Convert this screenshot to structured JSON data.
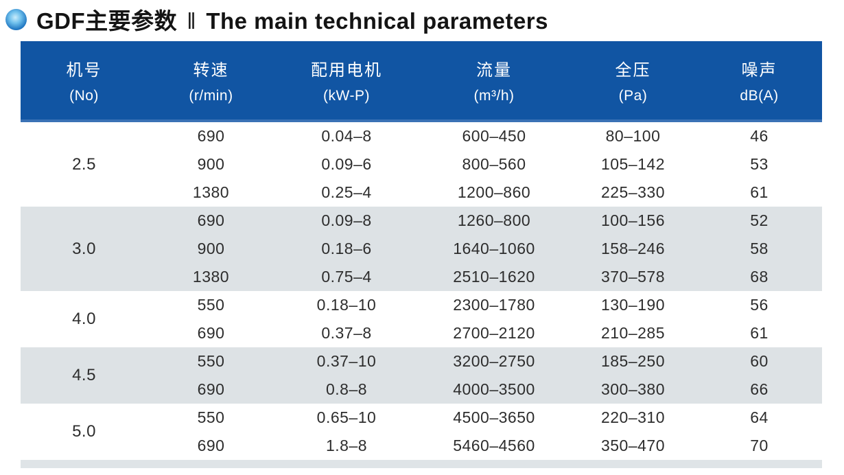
{
  "header": {
    "bullet_icon": "blue-sphere-icon",
    "title_zh": "GDF主要参数",
    "divider": "‖",
    "title_en": "The main technical parameters"
  },
  "colors": {
    "header_bg": "#1155a3",
    "header_edge": "#3a72b5",
    "header_text": "#ffffff",
    "shaded_row_bg": "#dde2e5",
    "row_bg": "#ffffff",
    "body_text": "#2d2d2d"
  },
  "table": {
    "columns": [
      {
        "name_zh": "机号",
        "unit": "(No)"
      },
      {
        "name_zh": "转速",
        "unit": "(r/min)"
      },
      {
        "name_zh": "配用电机",
        "unit": "(kW-P)"
      },
      {
        "name_zh": "流量",
        "unit": "(m³/h)"
      },
      {
        "name_zh": "全压",
        "unit": "(Pa)"
      },
      {
        "name_zh": "噪声",
        "unit": "dB(A)"
      }
    ],
    "groups": [
      {
        "no": "2.5",
        "shaded": false,
        "rows": [
          [
            "690",
            "0.04–8",
            "600–450",
            "80–100",
            "46"
          ],
          [
            "900",
            "0.09–6",
            "800–560",
            "105–142",
            "53"
          ],
          [
            "1380",
            "0.25–4",
            "1200–860",
            "225–330",
            "61"
          ]
        ]
      },
      {
        "no": "3.0",
        "shaded": true,
        "rows": [
          [
            "690",
            "0.09–8",
            "1260–800",
            "100–156",
            "52"
          ],
          [
            "900",
            "0.18–6",
            "1640–1060",
            "158–246",
            "58"
          ],
          [
            "1380",
            "0.75–4",
            "2510–1620",
            "370–578",
            "68"
          ]
        ]
      },
      {
        "no": "4.0",
        "shaded": false,
        "rows": [
          [
            "550",
            "0.18–10",
            "2300–1780",
            "130–190",
            "56"
          ],
          [
            "690",
            "0.37–8",
            "2700–2120",
            "210–285",
            "61"
          ]
        ]
      },
      {
        "no": "4.5",
        "shaded": true,
        "rows": [
          [
            "550",
            "0.37–10",
            "3200–2750",
            "185–250",
            "60"
          ],
          [
            "690",
            "0.8–8",
            "4000–3500",
            "300–380",
            "66"
          ]
        ]
      },
      {
        "no": "5.0",
        "shaded": false,
        "rows": [
          [
            "550",
            "0.65–10",
            "4500–3650",
            "220–310",
            "64"
          ],
          [
            "690",
            "1.8–8",
            "5460–4560",
            "350–470",
            "70"
          ]
        ]
      }
    ]
  }
}
